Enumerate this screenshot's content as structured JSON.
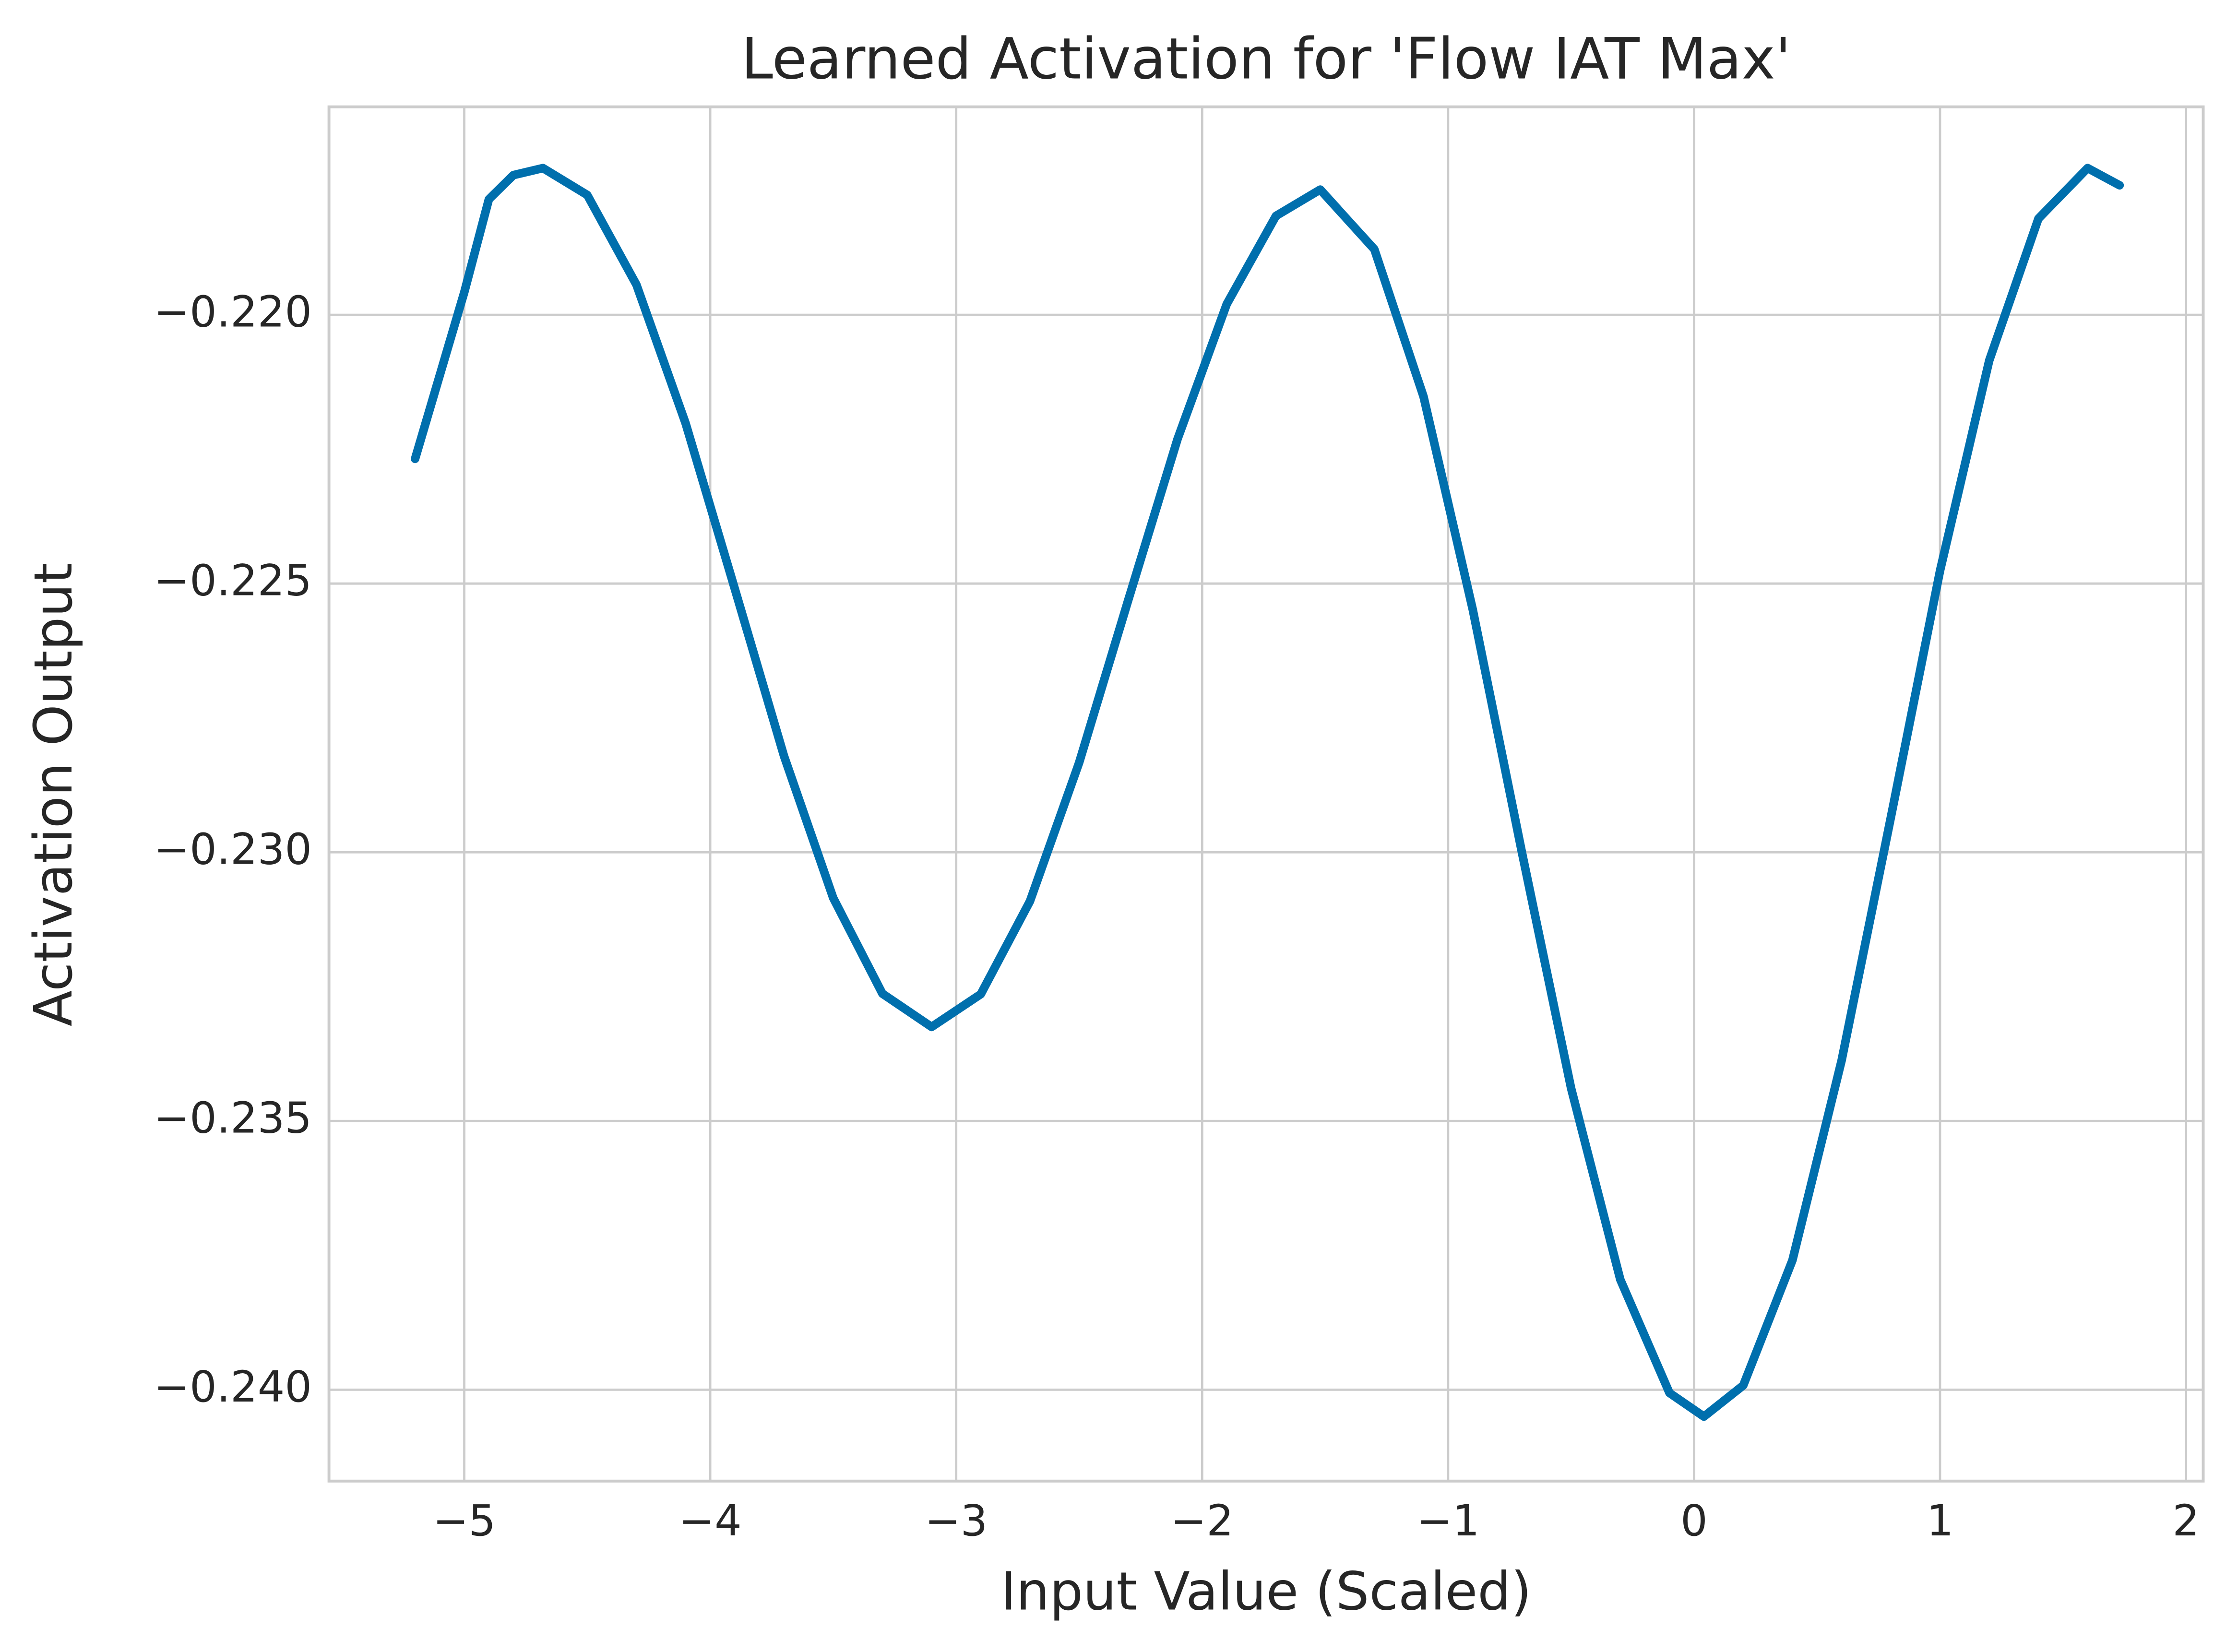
{
  "chart_data": {
    "type": "line",
    "title": "Learned Activation for 'Flow IAT Max'",
    "x_label": "Input Value (Scaled)",
    "y_label": "Activation Output",
    "x": [
      -5.2,
      -5.0,
      -4.9,
      -4.8,
      -4.68,
      -4.5,
      -4.3,
      -4.1,
      -3.9,
      -3.7,
      -3.5,
      -3.3,
      -3.1,
      -2.9,
      -2.7,
      -2.5,
      -2.3,
      -2.1,
      -1.9,
      -1.7,
      -1.52,
      -1.3,
      -1.1,
      -0.9,
      -0.7,
      -0.5,
      -0.3,
      -0.1,
      0.04,
      0.2,
      0.4,
      0.6,
      0.8,
      1.0,
      1.2,
      1.4,
      1.6,
      1.73
    ],
    "series": [
      {
        "name": "Activation",
        "color": "#006fad",
        "values": [
          -0.22268,
          -0.21958,
          -0.21785,
          -0.2174,
          -0.21727,
          -0.21777,
          -0.21944,
          -0.22202,
          -0.2251,
          -0.22821,
          -0.23085,
          -0.23263,
          -0.23325,
          -0.23264,
          -0.23091,
          -0.22833,
          -0.2253,
          -0.22231,
          -0.2198,
          -0.21816,
          -0.21767,
          -0.21878,
          -0.22152,
          -0.22548,
          -0.23,
          -0.23439,
          -0.23795,
          -0.24006,
          -0.2405,
          -0.23992,
          -0.23759,
          -0.23387,
          -0.22935,
          -0.22476,
          -0.22085,
          -0.21821,
          -0.21727,
          -0.21759
        ]
      }
    ],
    "xlim": [
      -5.55,
      2.07
    ],
    "ylim": [
      -0.2417,
      -0.21613
    ],
    "xticks": [
      {
        "value": -5,
        "label": "−5"
      },
      {
        "value": -4,
        "label": "−4"
      },
      {
        "value": -3,
        "label": "−3"
      },
      {
        "value": -2,
        "label": "−2"
      },
      {
        "value": -1,
        "label": "−1"
      },
      0,
      1,
      2
    ],
    "yticks": [
      {
        "value": -0.24,
        "label": "−0.240"
      },
      {
        "value": -0.235,
        "label": "−0.235"
      },
      {
        "value": -0.23,
        "label": "−0.230"
      },
      {
        "value": -0.225,
        "label": "−0.225"
      },
      {
        "value": -0.22,
        "label": "−0.220"
      }
    ],
    "grid": true
  }
}
